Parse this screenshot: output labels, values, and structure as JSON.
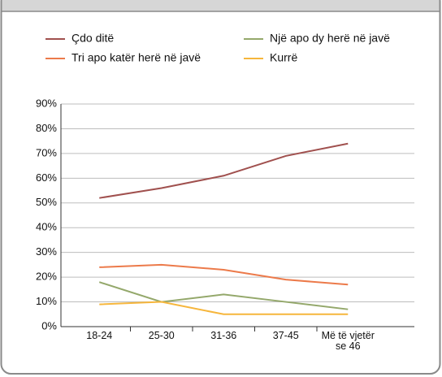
{
  "chart_data": {
    "type": "line",
    "categories": [
      "18-24",
      "25-30",
      "31-36",
      "37-45",
      "Më të vjetër se 46"
    ],
    "series": [
      {
        "name": "Çdo ditë",
        "color": "#a0504e",
        "values": [
          52,
          56,
          61,
          69,
          74
        ]
      },
      {
        "name": "Një apo dy herë në javë",
        "color": "#94a86b",
        "values": [
          18,
          10,
          13,
          10,
          7
        ]
      },
      {
        "name": "Tri apo katër herë në javë",
        "color": "#ec7a4a",
        "values": [
          24,
          25,
          23,
          19,
          17
        ]
      },
      {
        "name": "Kurrë",
        "color": "#f6b63c",
        "values": [
          9,
          10,
          5,
          5,
          5
        ]
      }
    ],
    "ylim": [
      0,
      90
    ],
    "yticks": [
      {
        "value": 0,
        "label": "0%"
      },
      {
        "value": 10,
        "label": "10%"
      },
      {
        "value": 20,
        "label": "20%"
      },
      {
        "value": 30,
        "label": "30%"
      },
      {
        "value": 40,
        "label": "40%"
      },
      {
        "value": 50,
        "label": "50%"
      },
      {
        "value": 60,
        "label": "60%"
      },
      {
        "value": 70,
        "label": "70%"
      },
      {
        "value": 80,
        "label": "80%"
      },
      {
        "value": 90,
        "label": "90%"
      }
    ],
    "grid": true
  }
}
